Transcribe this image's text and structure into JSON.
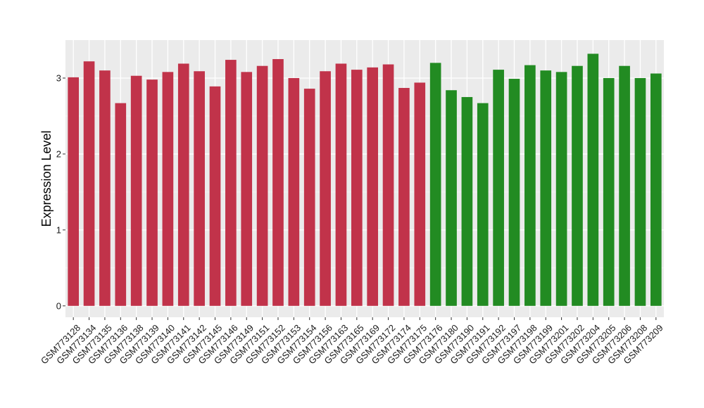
{
  "chart_data": {
    "type": "bar",
    "title": "",
    "xlabel": "",
    "ylabel": "Expression Level",
    "ylim": [
      -0.15,
      3.5
    ],
    "yticks": [
      0,
      1,
      2,
      3
    ],
    "grid": true,
    "legend": "none",
    "colors": {
      "panel_background": "#EBEBEB",
      "grid_major": "#FFFFFF",
      "grid_minor": "#F5F5F5",
      "tick_mark": "#333333"
    },
    "categories": [
      "GSM773128",
      "GSM773134",
      "GSM773135",
      "GSM773136",
      "GSM773138",
      "GSM773139",
      "GSM773140",
      "GSM773141",
      "GSM773142",
      "GSM773145",
      "GSM773146",
      "GSM773149",
      "GSM773151",
      "GSM773152",
      "GSM773153",
      "GSM773154",
      "GSM773156",
      "GSM773163",
      "GSM773165",
      "GSM773169",
      "GSM773172",
      "GSM773174",
      "GSM773175",
      "GSM773176",
      "GSM773180",
      "GSM773190",
      "GSM773191",
      "GSM773192",
      "GSM773197",
      "GSM773198",
      "GSM773199",
      "GSM773201",
      "GSM773202",
      "GSM773204",
      "GSM773205",
      "GSM773206",
      "GSM773208",
      "GSM773209"
    ],
    "values": [
      3.01,
      3.22,
      3.1,
      2.67,
      3.03,
      2.98,
      3.08,
      3.19,
      3.09,
      2.89,
      3.24,
      3.08,
      3.16,
      3.25,
      3.0,
      2.86,
      3.09,
      3.19,
      3.11,
      3.14,
      3.18,
      2.87,
      2.94,
      3.2,
      2.84,
      2.75,
      2.67,
      3.11,
      2.99,
      3.17,
      3.1,
      3.08,
      3.16,
      3.32,
      3.0,
      3.16,
      3.0,
      3.06
    ],
    "bar_colors": [
      "#C1334A",
      "#C1334A",
      "#C1334A",
      "#C1334A",
      "#C1334A",
      "#C1334A",
      "#C1334A",
      "#C1334A",
      "#C1334A",
      "#C1334A",
      "#C1334A",
      "#C1334A",
      "#C1334A",
      "#C1334A",
      "#C1334A",
      "#C1334A",
      "#C1334A",
      "#C1334A",
      "#C1334A",
      "#C1334A",
      "#C1334A",
      "#C1334A",
      "#C1334A",
      "#228B22",
      "#228B22",
      "#228B22",
      "#228B22",
      "#228B22",
      "#228B22",
      "#228B22",
      "#228B22",
      "#228B22",
      "#228B22",
      "#228B22",
      "#228B22",
      "#228B22",
      "#228B22",
      "#228B22"
    ]
  }
}
